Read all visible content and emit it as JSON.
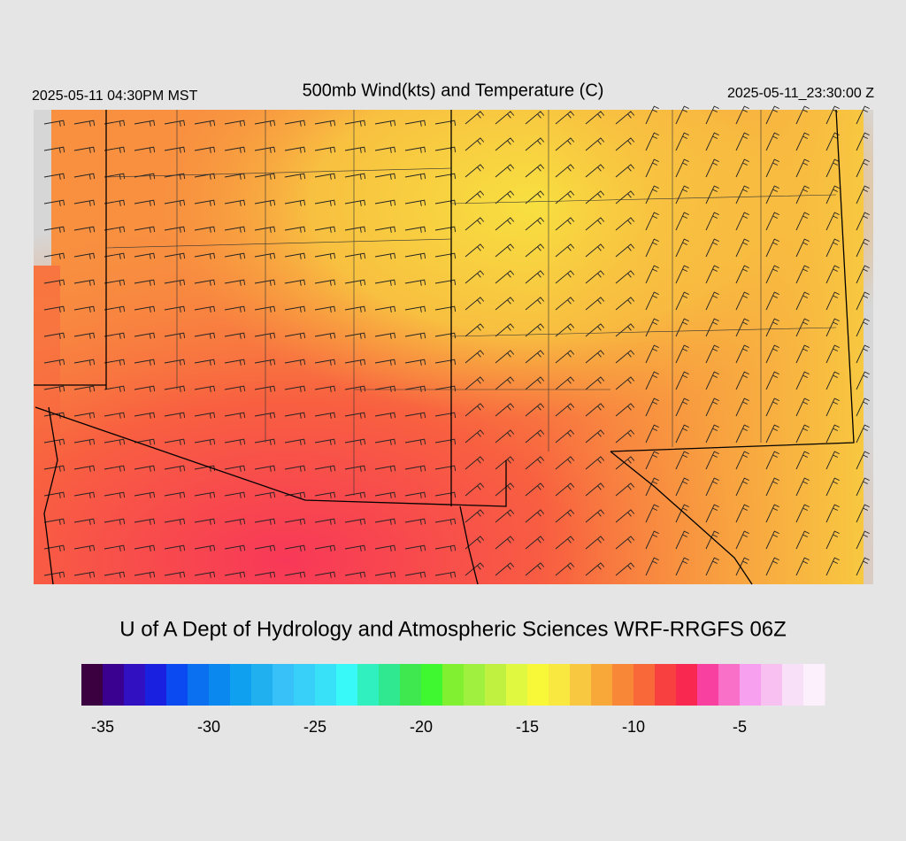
{
  "header": {
    "left": "2025-05-11 04:30PM MST",
    "title": "500mb Wind(kts) and Temperature (C)",
    "right": "2025-05-11_23:30:00 Z"
  },
  "credit": "U of A Dept of Hydrology and Atmospheric Sciences WRF-RRGFS 06Z",
  "colorbar": {
    "lim": [
      -36,
      -1
    ],
    "ticks": [
      -35,
      -30,
      -25,
      -20,
      -15,
      -10,
      -5
    ],
    "colors": [
      "#3a0040",
      "#3a0090",
      "#3010c0",
      "#1a20e0",
      "#0a4af0",
      "#0a70f0",
      "#0a88f0",
      "#10a0f0",
      "#20b0f0",
      "#38c0f8",
      "#38d0f8",
      "#38e0f8",
      "#38f8f8",
      "#30f0c0",
      "#30e890",
      "#40e850",
      "#40f830",
      "#80f030",
      "#a0f040",
      "#c0f040",
      "#e0f840",
      "#f8f838",
      "#f8e840",
      "#f8c840",
      "#f8a838",
      "#f88838",
      "#f86838",
      "#f84040",
      "#f82850",
      "#f840a0",
      "#f870c8",
      "#f8a0f0",
      "#f8c0f0",
      "#f8e0f8",
      "#fcf0fc"
    ]
  }
}
